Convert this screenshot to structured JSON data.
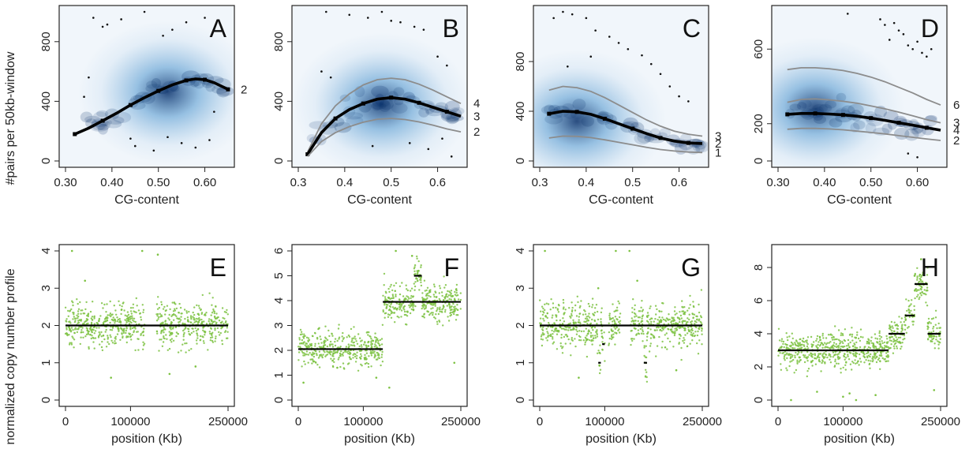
{
  "figure": {
    "top_ylabel": "#pairs per 50kb-window",
    "bottom_ylabel": "normalized copy number profile"
  },
  "colors": {
    "density_light": "#d6e6f4",
    "density_mid": "#6aa6d6",
    "density_dark": "#08306b",
    "outlier": "#111111",
    "fit_main": "#000000",
    "fit_secondary": "#8c8c8c",
    "profile_points": "#7dc242",
    "segment": "#000000"
  },
  "chart_data": [
    {
      "type": "scatter",
      "panel": "A",
      "xlabel": "CG-content",
      "xlim": [
        0.3,
        0.65
      ],
      "ylim": [
        0,
        1000
      ],
      "xticks": [
        "0.30",
        "0.40",
        "0.50",
        "0.60"
      ],
      "yticks": [
        "0",
        "400",
        "800"
      ],
      "density_center": {
        "x": 0.52,
        "y": 460
      },
      "main_state": "2",
      "series": [
        {
          "label": "2",
          "main": true,
          "x": [
            0.32,
            0.35,
            0.38,
            0.41,
            0.44,
            0.47,
            0.5,
            0.53,
            0.56,
            0.58,
            0.6,
            0.62,
            0.65
          ],
          "y": [
            180,
            220,
            270,
            320,
            375,
            425,
            470,
            510,
            540,
            550,
            545,
            525,
            480
          ]
        }
      ],
      "outliers": [
        [
          0.36,
          960
        ],
        [
          0.38,
          900
        ],
        [
          0.39,
          915
        ],
        [
          0.42,
          950
        ],
        [
          0.47,
          1000
        ],
        [
          0.51,
          840
        ],
        [
          0.53,
          880
        ],
        [
          0.56,
          930
        ],
        [
          0.6,
          960
        ],
        [
          0.35,
          560
        ],
        [
          0.45,
          100
        ],
        [
          0.49,
          70
        ],
        [
          0.52,
          160
        ],
        [
          0.55,
          120
        ],
        [
          0.58,
          90
        ],
        [
          0.61,
          140
        ],
        [
          0.44,
          150
        ],
        [
          0.34,
          430
        ],
        [
          0.62,
          330
        ]
      ]
    },
    {
      "type": "scatter",
      "panel": "B",
      "xlabel": "CG-content",
      "xlim": [
        0.3,
        0.65
      ],
      "ylim": [
        0,
        1000
      ],
      "xticks": [
        "0.3",
        "0.4",
        "0.5",
        "0.6"
      ],
      "yticks": [
        "0",
        "400",
        "800"
      ],
      "density_center": {
        "x": 0.48,
        "y": 380
      },
      "main_state": "3",
      "series": [
        {
          "label": "4",
          "main": false,
          "x": [
            0.32,
            0.35,
            0.38,
            0.41,
            0.44,
            0.47,
            0.5,
            0.53,
            0.56,
            0.59,
            0.62,
            0.65
          ],
          "y": [
            60,
            250,
            370,
            450,
            510,
            545,
            555,
            545,
            515,
            475,
            430,
            385
          ]
        },
        {
          "label": "3",
          "main": true,
          "x": [
            0.32,
            0.35,
            0.38,
            0.41,
            0.44,
            0.47,
            0.5,
            0.53,
            0.56,
            0.59,
            0.62,
            0.65
          ],
          "y": [
            45,
            190,
            285,
            345,
            385,
            415,
            425,
            415,
            390,
            360,
            330,
            300
          ]
        },
        {
          "label": "2",
          "main": false,
          "x": [
            0.32,
            0.35,
            0.38,
            0.41,
            0.44,
            0.47,
            0.5,
            0.53,
            0.56,
            0.59,
            0.62,
            0.65
          ],
          "y": [
            30,
            130,
            190,
            230,
            260,
            280,
            285,
            278,
            262,
            240,
            215,
            195
          ]
        }
      ],
      "outliers": [
        [
          0.36,
          1000
        ],
        [
          0.41,
          980
        ],
        [
          0.45,
          960
        ],
        [
          0.48,
          1000
        ],
        [
          0.5,
          940
        ],
        [
          0.52,
          930
        ],
        [
          0.55,
          900
        ],
        [
          0.57,
          880
        ],
        [
          0.6,
          700
        ],
        [
          0.62,
          640
        ],
        [
          0.35,
          600
        ],
        [
          0.37,
          560
        ],
        [
          0.54,
          120
        ],
        [
          0.58,
          80
        ],
        [
          0.61,
          150
        ],
        [
          0.63,
          30
        ],
        [
          0.46,
          100
        ]
      ]
    },
    {
      "type": "scatter",
      "panel": "C",
      "xlabel": "CG-content",
      "xlim": [
        0.3,
        0.65
      ],
      "ylim": [
        0,
        1200
      ],
      "xticks": [
        "0.3",
        "0.4",
        "0.5",
        "0.6"
      ],
      "yticks": [
        "0",
        "400",
        "800"
      ],
      "density_center": {
        "x": 0.38,
        "y": 320
      },
      "main_state": "2",
      "series": [
        {
          "label": "3",
          "main": false,
          "x": [
            0.32,
            0.35,
            0.38,
            0.41,
            0.44,
            0.47,
            0.5,
            0.53,
            0.56,
            0.59,
            0.62,
            0.65
          ],
          "y": [
            570,
            600,
            590,
            560,
            510,
            450,
            390,
            330,
            280,
            240,
            215,
            200
          ]
        },
        {
          "label": "2",
          "main": true,
          "x": [
            0.32,
            0.35,
            0.38,
            0.41,
            0.44,
            0.47,
            0.5,
            0.53,
            0.56,
            0.59,
            0.62,
            0.65
          ],
          "y": [
            380,
            400,
            395,
            375,
            340,
            300,
            260,
            220,
            185,
            160,
            145,
            140
          ]
        },
        {
          "label": "1",
          "main": false,
          "x": [
            0.32,
            0.35,
            0.38,
            0.41,
            0.44,
            0.47,
            0.5,
            0.53,
            0.56,
            0.59,
            0.62,
            0.65
          ],
          "y": [
            185,
            200,
            198,
            188,
            170,
            150,
            130,
            110,
            92,
            80,
            72,
            68
          ]
        }
      ],
      "outliers": [
        [
          0.33,
          1150
        ],
        [
          0.35,
          1200
        ],
        [
          0.37,
          1180
        ],
        [
          0.4,
          1150
        ],
        [
          0.42,
          1050
        ],
        [
          0.45,
          1000
        ],
        [
          0.47,
          950
        ],
        [
          0.49,
          900
        ],
        [
          0.52,
          850
        ],
        [
          0.54,
          780
        ],
        [
          0.56,
          700
        ],
        [
          0.58,
          600
        ],
        [
          0.6,
          520
        ],
        [
          0.62,
          480
        ],
        [
          0.36,
          760
        ],
        [
          0.41,
          840
        ]
      ]
    },
    {
      "type": "scatter",
      "panel": "D",
      "xlabel": "CG-content",
      "xlim": [
        0.3,
        0.65
      ],
      "ylim": [
        0,
        800
      ],
      "xticks": [
        "0.30",
        "0.40",
        "0.50",
        "0.60"
      ],
      "yticks": [
        "0",
        "200",
        "600"
      ],
      "density_center": {
        "x": 0.38,
        "y": 280
      },
      "main_state": "4",
      "series": [
        {
          "label": "6",
          "main": false,
          "x": [
            0.32,
            0.35,
            0.38,
            0.41,
            0.44,
            0.47,
            0.5,
            0.53,
            0.56,
            0.59,
            0.62,
            0.65
          ],
          "y": [
            490,
            500,
            500,
            495,
            485,
            470,
            450,
            425,
            395,
            365,
            330,
            300
          ]
        },
        {
          "label": "4",
          "main": true,
          "x": [
            0.32,
            0.35,
            0.38,
            0.41,
            0.44,
            0.47,
            0.5,
            0.53,
            0.56,
            0.59,
            0.62,
            0.65
          ],
          "y": [
            250,
            255,
            255,
            252,
            247,
            240,
            230,
            218,
            205,
            192,
            178,
            165
          ]
        },
        {
          "label": "3",
          "main": false,
          "x": [
            0.32,
            0.35,
            0.38,
            0.41,
            0.44,
            0.47,
            0.5,
            0.53,
            0.56,
            0.59,
            0.62,
            0.65
          ],
          "y": [
            315,
            330,
            333,
            328,
            320,
            310,
            295,
            280,
            262,
            242,
            222,
            205
          ]
        },
        {
          "label": "2",
          "main": false,
          "x": [
            0.32,
            0.35,
            0.38,
            0.41,
            0.44,
            0.47,
            0.5,
            0.53,
            0.56,
            0.59,
            0.62,
            0.65
          ],
          "y": [
            170,
            175,
            175,
            172,
            167,
            160,
            153,
            145,
            136,
            127,
            118,
            110
          ]
        }
      ],
      "outliers": [
        [
          0.52,
          760
        ],
        [
          0.53,
          730
        ],
        [
          0.55,
          740
        ],
        [
          0.56,
          700
        ],
        [
          0.57,
          680
        ],
        [
          0.58,
          620
        ],
        [
          0.59,
          600
        ],
        [
          0.6,
          640
        ],
        [
          0.61,
          580
        ],
        [
          0.62,
          560
        ],
        [
          0.63,
          600
        ],
        [
          0.54,
          650
        ],
        [
          0.45,
          790
        ],
        [
          0.58,
          40
        ],
        [
          0.6,
          20
        ]
      ]
    },
    {
      "type": "scatter",
      "panel": "E",
      "xlabel": "position (Kb)",
      "xlim": [
        0,
        250000
      ],
      "ylim": [
        0,
        4
      ],
      "xticks": [
        "0",
        "100000",
        "250000"
      ],
      "yticks": [
        "0",
        "1",
        "2",
        "3",
        "4"
      ],
      "noise": 0.28,
      "gaps": [
        [
          122000,
          140000
        ]
      ],
      "segments": [
        {
          "x_start": 0,
          "x_end": 250000,
          "y": 2
        }
      ],
      "outliers": [
        [
          10000,
          4.0
        ],
        [
          118000,
          4.0
        ],
        [
          142000,
          3.9
        ],
        [
          160000,
          0.7
        ],
        [
          200000,
          0.9
        ],
        [
          70000,
          0.6
        ],
        [
          30000,
          3.2
        ]
      ]
    },
    {
      "type": "scatter",
      "panel": "F",
      "xlabel": "position (Kb)",
      "xlim": [
        0,
        250000
      ],
      "ylim": [
        0,
        6
      ],
      "xticks": [
        "0",
        "100000",
        "250000"
      ],
      "yticks": [
        "0",
        "1",
        "2",
        "3",
        "4",
        "5",
        "6"
      ],
      "noise": 0.35,
      "gaps": [],
      "segments": [
        {
          "x_start": 0,
          "x_end": 130000,
          "y": 2.05
        },
        {
          "x_start": 130000,
          "x_end": 190000,
          "y": 3.95
        },
        {
          "x_start": 178000,
          "x_end": 190000,
          "y": 5.0
        },
        {
          "x_start": 190000,
          "x_end": 250000,
          "y": 3.95
        }
      ],
      "outliers": [
        [
          150000,
          6.0
        ],
        [
          175000,
          5.8
        ],
        [
          185000,
          5.2
        ],
        [
          8000,
          0.7
        ],
        [
          60000,
          1.3
        ],
        [
          140000,
          0.5
        ],
        [
          240000,
          1.5
        ],
        [
          120000,
          0.9
        ]
      ]
    },
    {
      "type": "scatter",
      "panel": "G",
      "xlabel": "position (Kb)",
      "xlim": [
        0,
        250000
      ],
      "ylim": [
        0,
        4
      ],
      "xticks": [
        "0",
        "100000",
        "250000"
      ],
      "yticks": [
        "0",
        "1",
        "2",
        "3",
        "4"
      ],
      "noise": 0.3,
      "gaps": [
        [
          100000,
          106000
        ],
        [
          124000,
          140000
        ]
      ],
      "segments": [
        {
          "x_start": 0,
          "x_end": 250000,
          "y": 2.0
        },
        {
          "x_start": 90000,
          "x_end": 94000,
          "y": 1.0
        },
        {
          "x_start": 96000,
          "x_end": 100000,
          "y": 1.5
        },
        {
          "x_start": 160000,
          "x_end": 165000,
          "y": 1.0
        }
      ],
      "outliers": [
        [
          8000,
          4.0
        ],
        [
          117000,
          4.0
        ],
        [
          138000,
          4.0
        ],
        [
          150000,
          3.2
        ],
        [
          60000,
          0.6
        ],
        [
          210000,
          0.8
        ],
        [
          90000,
          3.0
        ]
      ]
    },
    {
      "type": "scatter",
      "panel": "H",
      "xlabel": "position (Kb)",
      "xlim": [
        0,
        250000
      ],
      "ylim": [
        0,
        9
      ],
      "xticks": [
        "0",
        "100000",
        "250000"
      ],
      "yticks": [
        "0",
        "2",
        "4",
        "6",
        "8"
      ],
      "noise": 0.5,
      "gaps": [],
      "segments": [
        {
          "x_start": 0,
          "x_end": 170000,
          "y": 3.0
        },
        {
          "x_start": 170000,
          "x_end": 195000,
          "y": 4.0
        },
        {
          "x_start": 195000,
          "x_end": 210000,
          "y": 5.1
        },
        {
          "x_start": 210000,
          "x_end": 230000,
          "y": 7.0
        },
        {
          "x_start": 230000,
          "x_end": 250000,
          "y": 4.0
        }
      ],
      "outliers": [
        [
          220000,
          8.5
        ],
        [
          230000,
          8.0
        ],
        [
          210000,
          7.5
        ],
        [
          100000,
          0.2
        ],
        [
          110000,
          0.4
        ],
        [
          120000,
          0.0
        ],
        [
          60000,
          0.5
        ],
        [
          20000,
          0.0
        ],
        [
          150000,
          0.3
        ],
        [
          240000,
          0.6
        ]
      ]
    }
  ]
}
